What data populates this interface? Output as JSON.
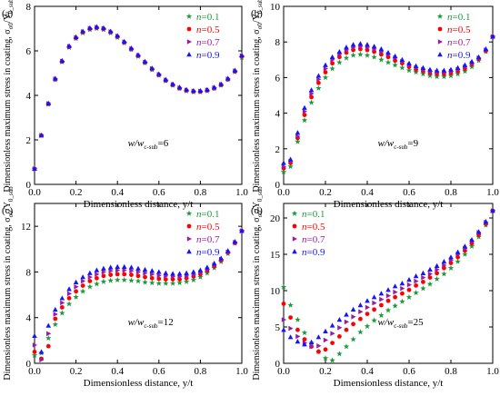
{
  "colors": {
    "n01": "#1a9a3a",
    "n05": "#ff0000",
    "n07": "#9a1aa0",
    "n09": "#1414ff"
  },
  "chart_data": [
    {
      "type": "scatter",
      "panel_label": "(a)",
      "note_main": "w/w",
      "note_sub": "c-sub",
      "note_value": "=6",
      "xlabel": "Dimensionless distance, y/t",
      "ylabel": "Dimensionless maximum stress in coating, σ",
      "ylabel_sub": "σ0",
      "ylabel_mid": "/Y",
      "ylabel_sub2": "0_sub",
      "xlim": [
        0.0,
        1.0
      ],
      "ylim": [
        0,
        8
      ],
      "xticks": [
        "0.0",
        "0.2",
        "0.4",
        "0.6",
        "0.8",
        "1.0"
      ],
      "yticks": [
        "0",
        "2",
        "4",
        "6",
        "8"
      ],
      "legend_position": "top-right",
      "x": [
        0.0,
        0.033,
        0.067,
        0.1,
        0.133,
        0.167,
        0.2,
        0.233,
        0.267,
        0.3,
        0.333,
        0.367,
        0.4,
        0.433,
        0.467,
        0.5,
        0.533,
        0.567,
        0.6,
        0.633,
        0.667,
        0.7,
        0.733,
        0.767,
        0.8,
        0.833,
        0.867,
        0.9,
        0.933,
        0.967,
        1.0
      ],
      "series": [
        {
          "name": "n=0.1",
          "legend_var": "n",
          "legend_val": "=0.1",
          "marker": "star",
          "color": "#1a9a3a",
          "y": [
            0.7,
            2.2,
            3.6,
            4.7,
            5.5,
            6.15,
            6.55,
            6.8,
            6.95,
            7.0,
            6.95,
            6.8,
            6.6,
            6.35,
            6.05,
            5.75,
            5.45,
            5.15,
            4.9,
            4.65,
            4.45,
            4.3,
            4.2,
            4.15,
            4.15,
            4.2,
            4.3,
            4.45,
            4.7,
            5.05,
            5.7
          ]
        },
        {
          "name": "n=0.5",
          "legend_var": "n",
          "legend_val": "=0.5",
          "marker": "circle",
          "color": "#ff0000",
          "y": [
            0.7,
            2.2,
            3.62,
            4.72,
            5.52,
            6.18,
            6.58,
            6.84,
            6.99,
            7.04,
            6.99,
            6.84,
            6.64,
            6.38,
            6.08,
            5.78,
            5.48,
            5.18,
            4.92,
            4.67,
            4.47,
            4.32,
            4.22,
            4.17,
            4.17,
            4.22,
            4.32,
            4.47,
            4.72,
            5.08,
            5.75
          ]
        },
        {
          "name": "n=0.7",
          "legend_var": "n",
          "legend_val": "=0.7",
          "marker": "tri-right",
          "color": "#9a1aa0",
          "y": [
            0.7,
            2.2,
            3.63,
            4.74,
            5.54,
            6.2,
            6.6,
            6.86,
            7.01,
            7.06,
            7.01,
            6.86,
            6.66,
            6.4,
            6.1,
            5.8,
            5.5,
            5.2,
            4.94,
            4.69,
            4.49,
            4.34,
            4.24,
            4.19,
            4.19,
            4.24,
            4.34,
            4.49,
            4.74,
            5.1,
            5.78
          ]
        },
        {
          "name": "n=0.9",
          "legend_var": "n",
          "legend_val": "=0.9",
          "marker": "tri-up",
          "color": "#1414ff",
          "y": [
            0.7,
            2.2,
            3.64,
            4.76,
            5.56,
            6.22,
            6.62,
            6.88,
            7.03,
            7.08,
            7.03,
            6.88,
            6.68,
            6.42,
            6.12,
            5.82,
            5.52,
            5.22,
            4.96,
            4.71,
            4.51,
            4.36,
            4.26,
            4.21,
            4.21,
            4.26,
            4.36,
            4.51,
            4.76,
            5.12,
            5.8
          ]
        }
      ]
    },
    {
      "type": "scatter",
      "panel_label": "(b)",
      "note_main": "w/w",
      "note_sub": "c-sub",
      "note_value": "=9",
      "xlabel": "Dimensionless distance, y/t",
      "ylabel": "Dimensionless maximum stress in coating, σ",
      "ylabel_sub": "σ0",
      "ylabel_mid": "/Y",
      "ylabel_sub2": "0_sub",
      "xlim": [
        0.0,
        1.0
      ],
      "ylim": [
        0,
        10
      ],
      "xticks": [
        "0.0",
        "0.2",
        "0.4",
        "0.6",
        "0.8",
        "1.0"
      ],
      "yticks": [
        "0",
        "2",
        "4",
        "6",
        "8",
        "10"
      ],
      "legend_position": "top-right",
      "x": [
        0.0,
        0.033,
        0.067,
        0.1,
        0.133,
        0.167,
        0.2,
        0.233,
        0.267,
        0.3,
        0.333,
        0.367,
        0.4,
        0.433,
        0.467,
        0.5,
        0.533,
        0.567,
        0.6,
        0.633,
        0.667,
        0.7,
        0.733,
        0.767,
        0.8,
        0.833,
        0.867,
        0.9,
        0.933,
        0.967,
        1.0
      ],
      "series": [
        {
          "name": "n=0.1",
          "legend_var": "n",
          "legend_val": "=0.1",
          "marker": "star",
          "color": "#1a9a3a",
          "y": [
            0.7,
            1.0,
            2.4,
            3.6,
            4.6,
            5.4,
            6.0,
            6.5,
            6.85,
            7.1,
            7.25,
            7.3,
            7.25,
            7.15,
            7.0,
            6.85,
            6.7,
            6.55,
            6.4,
            6.3,
            6.2,
            6.1,
            6.05,
            6.05,
            6.1,
            6.2,
            6.35,
            6.6,
            6.95,
            7.45,
            8.3
          ]
        },
        {
          "name": "n=0.5",
          "legend_var": "n",
          "legend_val": "=0.5",
          "marker": "circle",
          "color": "#ff0000",
          "y": [
            0.9,
            1.2,
            2.6,
            3.9,
            4.9,
            5.7,
            6.3,
            6.8,
            7.15,
            7.4,
            7.55,
            7.6,
            7.55,
            7.45,
            7.3,
            7.15,
            6.95,
            6.8,
            6.6,
            6.45,
            6.35,
            6.25,
            6.2,
            6.2,
            6.25,
            6.35,
            6.5,
            6.75,
            7.05,
            7.5,
            8.3
          ]
        },
        {
          "name": "n=0.7",
          "legend_var": "n",
          "legend_val": "=0.7",
          "marker": "tri-right",
          "color": "#9a1aa0",
          "y": [
            1.0,
            1.3,
            2.7,
            4.1,
            5.1,
            5.9,
            6.5,
            7.0,
            7.3,
            7.55,
            7.7,
            7.75,
            7.7,
            7.6,
            7.45,
            7.3,
            7.1,
            6.9,
            6.7,
            6.55,
            6.45,
            6.35,
            6.3,
            6.3,
            6.35,
            6.45,
            6.6,
            6.8,
            7.1,
            7.55,
            8.3
          ]
        },
        {
          "name": "n=0.9",
          "legend_var": "n",
          "legend_val": "=0.9",
          "marker": "tri-up",
          "color": "#1414ff",
          "y": [
            1.2,
            1.4,
            2.9,
            4.3,
            5.3,
            6.1,
            6.7,
            7.15,
            7.45,
            7.7,
            7.85,
            7.9,
            7.85,
            7.75,
            7.6,
            7.4,
            7.2,
            7.0,
            6.8,
            6.65,
            6.55,
            6.45,
            6.4,
            6.4,
            6.45,
            6.55,
            6.7,
            6.9,
            7.15,
            7.6,
            8.3
          ]
        }
      ]
    },
    {
      "type": "scatter",
      "panel_label": "(c)",
      "note_main": "w/w",
      "note_sub": "c-sub",
      "note_value": "=12",
      "xlabel": "Dimensionless distance, y/t",
      "ylabel": "Dimensionless maximum stress in coating, σ",
      "ylabel_sub": "σ0",
      "ylabel_mid": "/Y",
      "ylabel_sub2": "0_sub",
      "xlim": [
        0.0,
        1.0
      ],
      "ylim": [
        0,
        14
      ],
      "xticks": [
        "0.0",
        "0.2",
        "0.4",
        "0.6",
        "0.8",
        "1.0"
      ],
      "yticks": [
        "0",
        "4",
        "8",
        "12"
      ],
      "legend_position": "top-right",
      "x": [
        0.0,
        0.033,
        0.067,
        0.1,
        0.133,
        0.167,
        0.2,
        0.233,
        0.267,
        0.3,
        0.333,
        0.367,
        0.4,
        0.433,
        0.467,
        0.5,
        0.533,
        0.567,
        0.6,
        0.633,
        0.667,
        0.7,
        0.733,
        0.767,
        0.8,
        0.833,
        0.867,
        0.9,
        0.933,
        0.967,
        1.0
      ],
      "series": [
        {
          "name": "n=0.1",
          "legend_var": "n",
          "legend_val": "=0.1",
          "marker": "star",
          "color": "#1a9a3a",
          "y": [
            0.7,
            0.9,
            2.2,
            3.4,
            4.4,
            5.2,
            5.8,
            6.3,
            6.7,
            6.95,
            7.15,
            7.25,
            7.3,
            7.3,
            7.25,
            7.2,
            7.1,
            7.05,
            7.0,
            7.0,
            7.0,
            7.05,
            7.15,
            7.3,
            7.55,
            7.9,
            8.35,
            8.9,
            9.6,
            10.5,
            11.6
          ]
        },
        {
          "name": "n=0.5",
          "legend_var": "n",
          "legend_val": "=0.5",
          "marker": "circle",
          "color": "#ff0000",
          "y": [
            1.0,
            0.4,
            1.5,
            3.9,
            4.9,
            5.7,
            6.3,
            6.8,
            7.2,
            7.45,
            7.65,
            7.75,
            7.8,
            7.8,
            7.75,
            7.65,
            7.55,
            7.45,
            7.4,
            7.35,
            7.35,
            7.35,
            7.45,
            7.6,
            7.8,
            8.1,
            8.5,
            9.0,
            9.7,
            10.55,
            11.6
          ]
        },
        {
          "name": "n=0.7",
          "legend_var": "n",
          "legend_val": "=0.7",
          "marker": "tri-right",
          "color": "#9a1aa0",
          "y": [
            1.6,
            0.3,
            2.6,
            4.3,
            5.3,
            6.1,
            6.7,
            7.2,
            7.55,
            7.8,
            8.0,
            8.1,
            8.15,
            8.15,
            8.1,
            8.0,
            7.9,
            7.8,
            7.7,
            7.65,
            7.6,
            7.6,
            7.65,
            7.75,
            7.95,
            8.2,
            8.6,
            9.1,
            9.75,
            10.6,
            11.6
          ]
        },
        {
          "name": "n=0.9",
          "legend_var": "n",
          "legend_val": "=0.9",
          "marker": "tri-up",
          "color": "#1414ff",
          "y": [
            2.4,
            1.0,
            3.3,
            4.7,
            5.7,
            6.5,
            7.1,
            7.55,
            7.9,
            8.15,
            8.3,
            8.4,
            8.45,
            8.45,
            8.4,
            8.3,
            8.2,
            8.1,
            8.0,
            7.9,
            7.85,
            7.85,
            7.9,
            8.0,
            8.15,
            8.4,
            8.75,
            9.2,
            9.85,
            10.65,
            11.6
          ]
        }
      ]
    },
    {
      "type": "scatter",
      "panel_label": "(d)",
      "note_main": "w/w",
      "note_sub": "c-sub",
      "note_value": "=25",
      "xlabel": "Dimensionless distance, y/t",
      "ylabel": "Dimensionless maximum stress in coating, σ",
      "ylabel_sub": "σ0",
      "ylabel_mid": "/Y",
      "ylabel_sub2": "0_sub",
      "xlim": [
        0.0,
        1.0
      ],
      "ylim": [
        0,
        22
      ],
      "xticks": [
        "0.0",
        "0.2",
        "0.4",
        "0.6",
        "0.8",
        "1.0"
      ],
      "yticks": [
        "0",
        "5",
        "10",
        "15",
        "20"
      ],
      "legend_position": "top-left",
      "x": [
        0.0,
        0.033,
        0.067,
        0.1,
        0.133,
        0.167,
        0.2,
        0.233,
        0.267,
        0.3,
        0.333,
        0.367,
        0.4,
        0.433,
        0.467,
        0.5,
        0.533,
        0.567,
        0.6,
        0.633,
        0.667,
        0.7,
        0.733,
        0.767,
        0.8,
        0.833,
        0.867,
        0.9,
        0.933,
        0.967,
        1.0
      ],
      "series": [
        {
          "name": "n=0.1",
          "legend_var": "n",
          "legend_val": "=0.1",
          "marker": "star",
          "color": "#1a9a3a",
          "y": [
            10.5,
            8.0,
            6.0,
            4.2,
            2.8,
            1.6,
            0.7,
            0.4,
            1.3,
            2.3,
            3.3,
            4.3,
            5.1,
            5.9,
            6.6,
            7.3,
            7.9,
            8.5,
            9.1,
            9.7,
            10.3,
            10.9,
            11.6,
            12.3,
            13.1,
            14.0,
            15.0,
            16.1,
            17.4,
            19.0,
            21.0
          ]
        },
        {
          "name": "n=0.5",
          "legend_var": "n",
          "legend_val": "=0.5",
          "marker": "circle",
          "color": "#ff0000",
          "y": [
            8.2,
            6.3,
            4.6,
            3.3,
            2.3,
            1.6,
            1.9,
            2.8,
            3.7,
            4.6,
            5.4,
            6.1,
            6.8,
            7.4,
            8.0,
            8.6,
            9.1,
            9.6,
            10.1,
            10.7,
            11.2,
            11.8,
            12.4,
            13.1,
            13.8,
            14.6,
            15.5,
            16.5,
            17.7,
            19.2,
            21.0
          ]
        },
        {
          "name": "n=0.7",
          "legend_var": "n",
          "legend_val": "=0.7",
          "marker": "tri-right",
          "color": "#9a1aa0",
          "y": [
            6.0,
            4.8,
            3.7,
            2.8,
            2.3,
            2.4,
            3.2,
            4.1,
            4.9,
            5.7,
            6.4,
            7.1,
            7.7,
            8.3,
            8.8,
            9.3,
            9.8,
            10.3,
            10.8,
            11.3,
            11.8,
            12.3,
            12.9,
            13.5,
            14.2,
            15.0,
            15.8,
            16.8,
            18.0,
            19.4,
            21.0
          ]
        },
        {
          "name": "n=0.9",
          "legend_var": "n",
          "legend_val": "=0.9",
          "marker": "tri-up",
          "color": "#1414ff",
          "y": [
            4.6,
            3.6,
            3.0,
            2.6,
            2.9,
            3.6,
            4.4,
            5.2,
            6.0,
            6.7,
            7.4,
            8.0,
            8.6,
            9.1,
            9.6,
            10.1,
            10.6,
            11.0,
            11.5,
            12.0,
            12.4,
            12.9,
            13.4,
            14.0,
            14.6,
            15.3,
            16.1,
            17.0,
            18.1,
            19.5,
            21.0
          ]
        }
      ]
    }
  ]
}
